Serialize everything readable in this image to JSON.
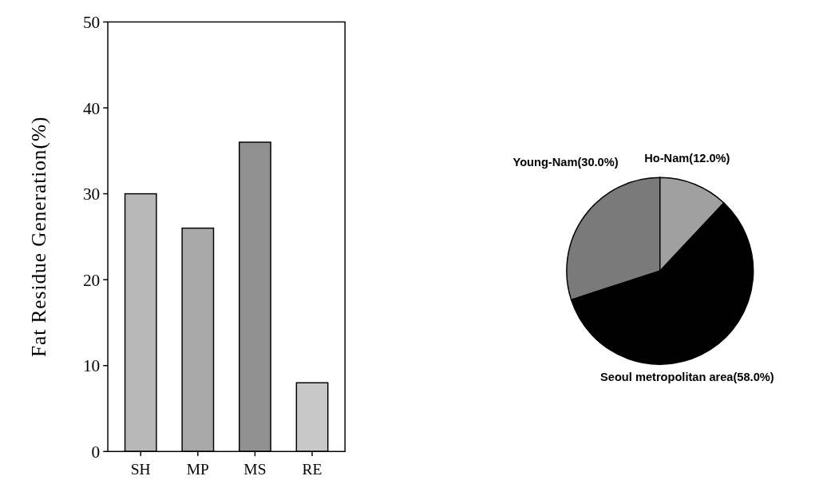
{
  "chart_data": [
    {
      "type": "bar",
      "ylabel": "Fat Residue Generation(%)",
      "categories": [
        "SH",
        "MP",
        "MS",
        "RE"
      ],
      "values": [
        30,
        26,
        36,
        8
      ],
      "colors": [
        "#b8b8b8",
        "#a8a8a8",
        "#909090",
        "#c8c8c8"
      ],
      "ylim": [
        0,
        50
      ],
      "yticks": [
        0,
        10,
        20,
        30,
        40,
        50
      ],
      "grid": false
    },
    {
      "type": "pie",
      "categories": [
        "Young-Nam(30.0%)",
        "Ho-Nam(12.0%)",
        "Seoul metropolitan area(58.0%)"
      ],
      "values": [
        30,
        12,
        58
      ],
      "colors": [
        "#7a7a7a",
        "#a0a0a0",
        "#000000"
      ]
    }
  ]
}
